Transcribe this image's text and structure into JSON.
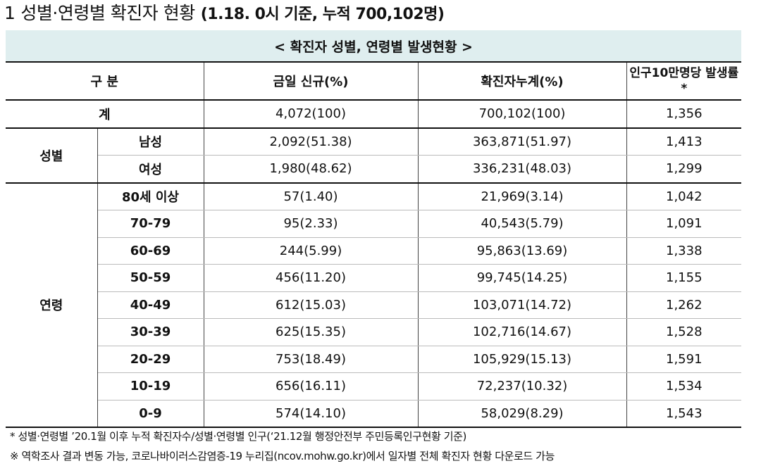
{
  "heading": {
    "number": "1",
    "main": "성별·연령별 확진자 현황",
    "sub": "(1.18. 0시 기준, 누적 700,102명)"
  },
  "table": {
    "caption": "< 확진자 성별, 연령별 발생현황 >",
    "headers": [
      "구 분",
      "금일 신규(%)",
      "확진자누계(%)",
      "인구10만명당 발생률*"
    ],
    "total": {
      "label": "계",
      "new": "4,072(100)",
      "cumulative": "700,102(100)",
      "rate": "1,356"
    },
    "sex": {
      "group": "성별",
      "rows": [
        {
          "label": "남성",
          "new": "2,092(51.38)",
          "cumulative": "363,871(51.97)",
          "rate": "1,413"
        },
        {
          "label": "여성",
          "new": "1,980(48.62)",
          "cumulative": "336,231(48.03)",
          "rate": "1,299"
        }
      ]
    },
    "age": {
      "group": "연령",
      "rows": [
        {
          "label": "80세 이상",
          "new": "57(1.40)",
          "cumulative": "21,969(3.14)",
          "rate": "1,042"
        },
        {
          "label": "70-79",
          "new": "95(2.33)",
          "cumulative": "40,543(5.79)",
          "rate": "1,091"
        },
        {
          "label": "60-69",
          "new": "244(5.99)",
          "cumulative": "95,863(13.69)",
          "rate": "1,338"
        },
        {
          "label": "50-59",
          "new": "456(11.20)",
          "cumulative": "99,745(14.25)",
          "rate": "1,155"
        },
        {
          "label": "40-49",
          "new": "612(15.03)",
          "cumulative": "103,071(14.72)",
          "rate": "1,262"
        },
        {
          "label": "30-39",
          "new": "625(15.35)",
          "cumulative": "102,716(14.67)",
          "rate": "1,528"
        },
        {
          "label": "20-29",
          "new": "753(18.49)",
          "cumulative": "105,929(15.13)",
          "rate": "1,591"
        },
        {
          "label": "10-19",
          "new": "656(16.11)",
          "cumulative": "72,237(10.32)",
          "rate": "1,534"
        },
        {
          "label": "0-9",
          "new": "574(14.10)",
          "cumulative": "58,029(8.29)",
          "rate": "1,543"
        }
      ]
    }
  },
  "notes": [
    "* 성별·연령별 ’20.1월 이후 누적 확진자수/성별·연령별 인구(‘21.12월 행정안전부 주민등록인구현황 기준)",
    "※ 역학조사 결과 변동 가능, 코로나바이러스감염증-19 누리집(ncov.mohw.go.kr)에서 일자별 전체 확진자 현황 다운로드 가능"
  ]
}
